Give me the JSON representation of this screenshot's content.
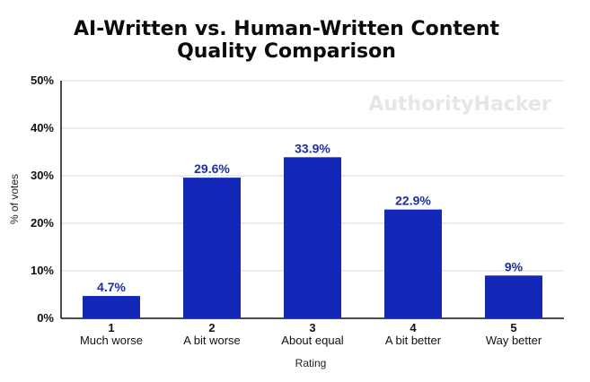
{
  "chart_data": {
    "type": "bar",
    "title_lines": [
      "AI-Written vs. Human-Written Content",
      "Quality Comparison"
    ],
    "watermark": "AuthorityHacker",
    "xlabel": "Rating",
    "ylabel": "% of votes",
    "categories": [
      "1",
      "2",
      "3",
      "4",
      "5"
    ],
    "category_labels": [
      "Much worse",
      "A bit worse",
      "About equal",
      "A bit better",
      "Way better"
    ],
    "values": [
      4.7,
      29.6,
      33.9,
      22.9,
      9
    ],
    "value_labels": [
      "4.7%",
      "29.6%",
      "33.9%",
      "22.9%",
      "9%"
    ],
    "ylim": [
      0,
      50
    ],
    "yticks": [
      0,
      10,
      20,
      30,
      40,
      50
    ],
    "ytick_labels": [
      "0%",
      "10%",
      "20%",
      "30%",
      "40%",
      "50%"
    ],
    "grid": true,
    "bar_color": "#1328b8",
    "label_color": "#1a2fb0"
  }
}
